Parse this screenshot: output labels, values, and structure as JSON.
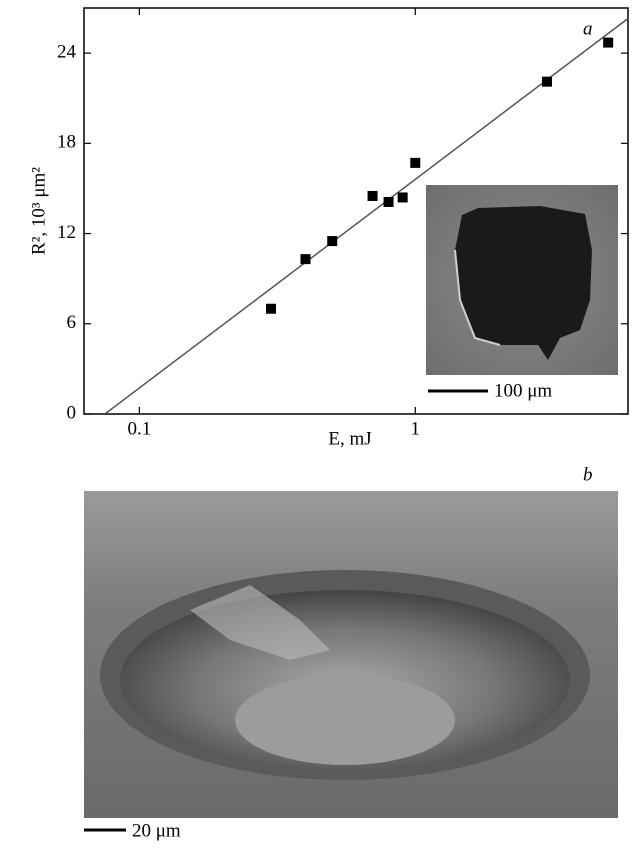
{
  "chart_data": {
    "type": "scatter",
    "panel_label": "a",
    "xlabel": "E, mJ",
    "ylabel": "R², 10³ μm²",
    "xscale": "log",
    "xlim": [
      0.063,
      5.9
    ],
    "ylim": [
      0,
      27
    ],
    "xticks": [
      0.1,
      1
    ],
    "yticks": [
      0,
      6,
      12,
      18,
      24
    ],
    "x": [
      0.3,
      0.4,
      0.5,
      0.7,
      0.8,
      0.9,
      1.0,
      3,
      5
    ],
    "values": [
      7.0,
      10.3,
      11.5,
      14.5,
      14.1,
      14.4,
      16.7,
      22.1,
      24.7
    ],
    "color": "#000000",
    "fit": {
      "x": [
        0.075,
        5.9
      ],
      "y": [
        0,
        26.3
      ],
      "color": "#555555"
    },
    "inset_scale_label": "100 μm"
  },
  "image_panel": {
    "panel_label": "b",
    "scale_label": "20 μm"
  }
}
